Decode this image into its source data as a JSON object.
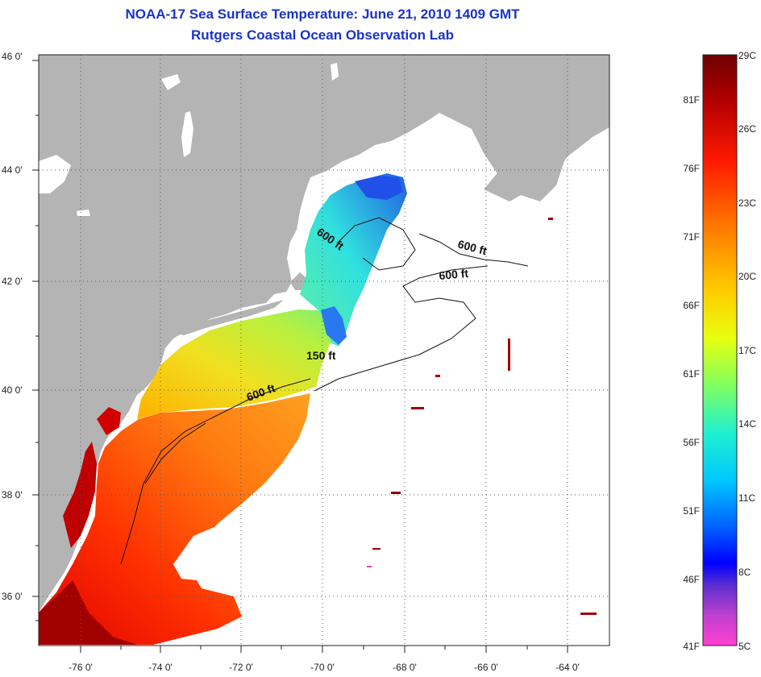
{
  "title": {
    "line1": "NOAA-17 Sea Surface Temperature:  June 21, 2010 1409 GMT",
    "line2": "Rutgers Coastal Ocean Observation Lab"
  },
  "axes": {
    "lat_labels": [
      "46 0'",
      "44 0'",
      "42 0'",
      "40 0'",
      "38 0'",
      "36 0'"
    ],
    "lon_labels": [
      "-76 0'",
      "-74 0'",
      "-72 0'",
      "-70 0'",
      "-68 0'",
      "-66 0'",
      "-64 0'"
    ]
  },
  "contours": {
    "a": "600 ft",
    "b": "600 ft",
    "c": "600 ft",
    "d": "150 ft",
    "e": "600 ft"
  },
  "colorbar": {
    "celsius": [
      "29C",
      "26C",
      "23C",
      "20C",
      "17C",
      "14C",
      "11C",
      "8C",
      "5C"
    ],
    "fahrenheit": [
      "81F",
      "76F",
      "71F",
      "66F",
      "61F",
      "56F",
      "51F",
      "46F",
      "41F"
    ]
  },
  "colors": {
    "land": "#b4b4b4",
    "title": "#1a33c8",
    "grid": "#555555"
  }
}
